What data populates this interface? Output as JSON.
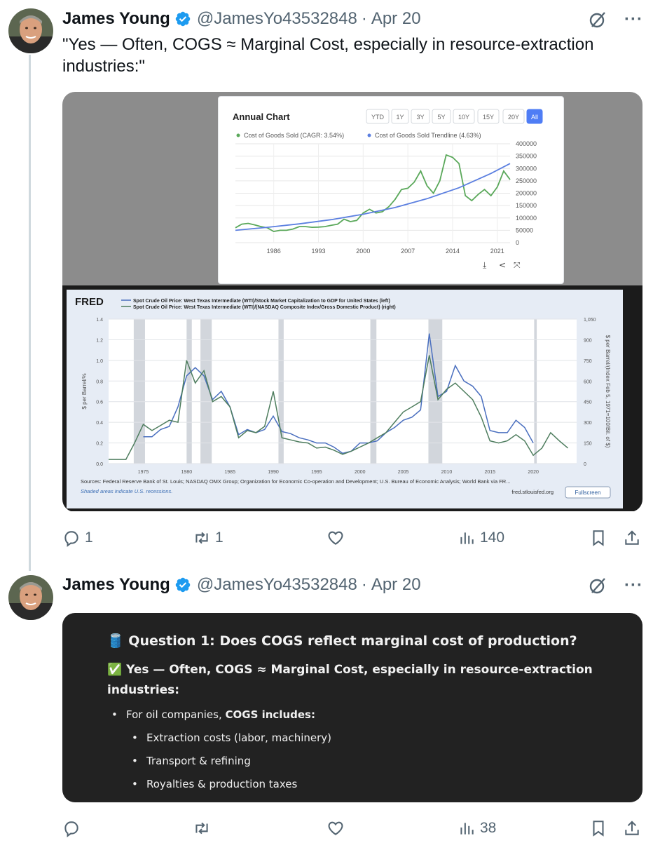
{
  "tweets": [
    {
      "author": "James Young",
      "handle": "@JamesYo43532848",
      "date": "Apr 20",
      "text": "\"Yes — Often, COGS ≈ Marginal Cost, especially in resource-extraction industries:\"",
      "stats": {
        "replies": "1",
        "retweets": "1",
        "likes": "",
        "views": "140"
      }
    },
    {
      "author": "James Young",
      "handle": "@JamesYo43532848",
      "date": "Apr 20",
      "stats": {
        "replies": "",
        "retweets": "",
        "likes": "",
        "views": "38"
      },
      "card": {
        "title_emoji": "🛢️",
        "title": "Question 1: Does COGS reflect marginal cost of production?",
        "answer_emoji": "✅",
        "answer_line1": "Yes — Often, COGS ≈ Marginal Cost, especially in resource-extraction",
        "answer_line2": "industries:",
        "bullet_intro": "For oil companies, ",
        "bullet_intro_bold": "COGS includes:",
        "sub_items": [
          "Extraction costs (labor, machinery)",
          "Transport & refining",
          "Royalties & production taxes"
        ]
      }
    }
  ],
  "chart_data": [
    {
      "type": "line",
      "title": "Annual Chart",
      "range_buttons": [
        "YTD",
        "1Y",
        "3Y",
        "5Y",
        "10Y",
        "15Y",
        "20Y",
        "All"
      ],
      "active_range": "All",
      "series": [
        {
          "name": "Cost of Goods Sold (CAGR: 3.54%)",
          "color": "#5aa85a",
          "x": [
            1980,
            1981,
            1982,
            1983,
            1984,
            1985,
            1986,
            1987,
            1988,
            1989,
            1990,
            1991,
            1992,
            1993,
            1994,
            1995,
            1996,
            1997,
            1998,
            1999,
            2000,
            2001,
            2002,
            2003,
            2004,
            2005,
            2006,
            2007,
            2008,
            2009,
            2010,
            2011,
            2012,
            2013,
            2014,
            2015,
            2016,
            2017,
            2018,
            2019,
            2020,
            2021,
            2022,
            2023
          ],
          "values": [
            60000,
            75000,
            78000,
            72000,
            65000,
            60000,
            45000,
            50000,
            50000,
            55000,
            65000,
            65000,
            62000,
            63000,
            65000,
            70000,
            75000,
            95000,
            85000,
            90000,
            120000,
            135000,
            120000,
            125000,
            145000,
            175000,
            215000,
            220000,
            245000,
            290000,
            230000,
            200000,
            250000,
            355000,
            345000,
            320000,
            190000,
            170000,
            195000,
            215000,
            190000,
            225000,
            290000,
            255000
          ]
        },
        {
          "name": "Cost of Goods Sold Trendline (4.63%)",
          "color": "#5b7fe0",
          "x": [
            1980,
            1985,
            1990,
            1995,
            2000,
            2005,
            2010,
            2015,
            2020,
            2023
          ],
          "values": [
            50000,
            62000,
            76000,
            93000,
            115000,
            142000,
            178000,
            222000,
            280000,
            320000
          ]
        }
      ],
      "xticks": [
        "1986",
        "1993",
        "2000",
        "2007",
        "2014",
        "2021"
      ],
      "yticks": [
        "400000",
        "350000",
        "300000",
        "250000",
        "200000",
        "150000",
        "100000",
        "50000",
        "0"
      ],
      "ylim": [
        0,
        400000
      ]
    },
    {
      "type": "line",
      "brand": "FRED",
      "legend": [
        "Spot Crude Oil Price: West Texas Intermediate (WTI)/Stock Market Capitalization to GDP for United States (left)",
        "Spot Crude Oil Price: West Texas Intermediate (WTI)/(NASDAQ Composite Index/Gross Domestic Product) (right)"
      ],
      "ylabel_left": "$ per Barrel/%",
      "ylabel_right": "$ per Barrel/(Index Feb 5, 1971=100/Bil. of $)",
      "left_ticks": [
        "1.4",
        "1.2",
        "1.0",
        "0.8",
        "0.6",
        "0.4",
        "0.2",
        "0.0"
      ],
      "right_ticks": [
        "1,050",
        "900",
        "750",
        "600",
        "450",
        "300",
        "150",
        "0"
      ],
      "xticks": [
        "1975",
        "1980",
        "1985",
        "1990",
        "1995",
        "2000",
        "2005",
        "2010",
        "2015",
        "2020"
      ],
      "xlim": [
        1971,
        2025
      ],
      "recessions": [
        [
          1973.9,
          1975.2
        ],
        [
          1980.0,
          1980.6
        ],
        [
          1981.6,
          1982.9
        ],
        [
          1990.6,
          1991.2
        ],
        [
          2001.2,
          2001.9
        ],
        [
          2007.9,
          2009.5
        ],
        [
          2020.1,
          2020.4
        ]
      ],
      "series": [
        {
          "name": "left",
          "color": "#4a6fbf",
          "x": [
            1975,
            1976,
            1977,
            1978,
            1979,
            1980,
            1981,
            1982,
            1983,
            1984,
            1985,
            1986,
            1987,
            1988,
            1989,
            1990,
            1991,
            1992,
            1993,
            1994,
            1995,
            1996,
            1997,
            1998,
            1999,
            2000,
            2001,
            2002,
            2003,
            2004,
            2005,
            2006,
            2007,
            2008,
            2009,
            2010,
            2011,
            2012,
            2013,
            2014,
            2015,
            2016,
            2017,
            2018,
            2019,
            2020
          ],
          "values": [
            0.26,
            0.26,
            0.33,
            0.36,
            0.55,
            0.85,
            0.93,
            0.85,
            0.62,
            0.7,
            0.55,
            0.28,
            0.33,
            0.3,
            0.33,
            0.46,
            0.31,
            0.29,
            0.25,
            0.23,
            0.2,
            0.2,
            0.16,
            0.1,
            0.12,
            0.2,
            0.2,
            0.22,
            0.3,
            0.35,
            0.42,
            0.45,
            0.52,
            1.26,
            0.65,
            0.7,
            0.95,
            0.8,
            0.75,
            0.65,
            0.32,
            0.3,
            0.3,
            0.42,
            0.35,
            0.2
          ]
        },
        {
          "name": "right",
          "color": "#4e7d5e",
          "x": [
            1971,
            1972,
            1973,
            1974,
            1975,
            1976,
            1977,
            1978,
            1979,
            1980,
            1981,
            1982,
            1983,
            1984,
            1985,
            1986,
            1987,
            1988,
            1989,
            1990,
            1991,
            1992,
            1993,
            1994,
            1995,
            1996,
            1997,
            1998,
            1999,
            2000,
            2001,
            2002,
            2003,
            2004,
            2005,
            2006,
            2007,
            2008,
            2009,
            2010,
            2011,
            2012,
            2013,
            2014,
            2015,
            2016,
            2017,
            2018,
            2019,
            2020,
            2021,
            2022,
            2023,
            2024
          ],
          "values": [
            0.04,
            0.04,
            0.04,
            0.2,
            0.38,
            0.32,
            0.37,
            0.42,
            0.4,
            1.0,
            0.78,
            0.9,
            0.6,
            0.65,
            0.55,
            0.25,
            0.32,
            0.3,
            0.36,
            0.7,
            0.25,
            0.23,
            0.21,
            0.2,
            0.15,
            0.16,
            0.13,
            0.09,
            0.12,
            0.16,
            0.2,
            0.25,
            0.3,
            0.4,
            0.5,
            0.55,
            0.6,
            1.05,
            0.62,
            0.72,
            0.78,
            0.7,
            0.62,
            0.45,
            0.22,
            0.2,
            0.22,
            0.28,
            0.22,
            0.08,
            0.15,
            0.3,
            0.22,
            0.15
          ]
        }
      ],
      "source": "Sources: Federal Reserve Bank of St. Louis; NASDAQ OMX Group; Organization for Economic Co-operation and Development; U.S. Bureau of Economic Analysis; World Bank via FR...",
      "shaded_note": "Shaded areas indicate U.S. recessions.",
      "site": "fred.stlouisfed.org",
      "fullscreen": "Fullscreen"
    }
  ]
}
